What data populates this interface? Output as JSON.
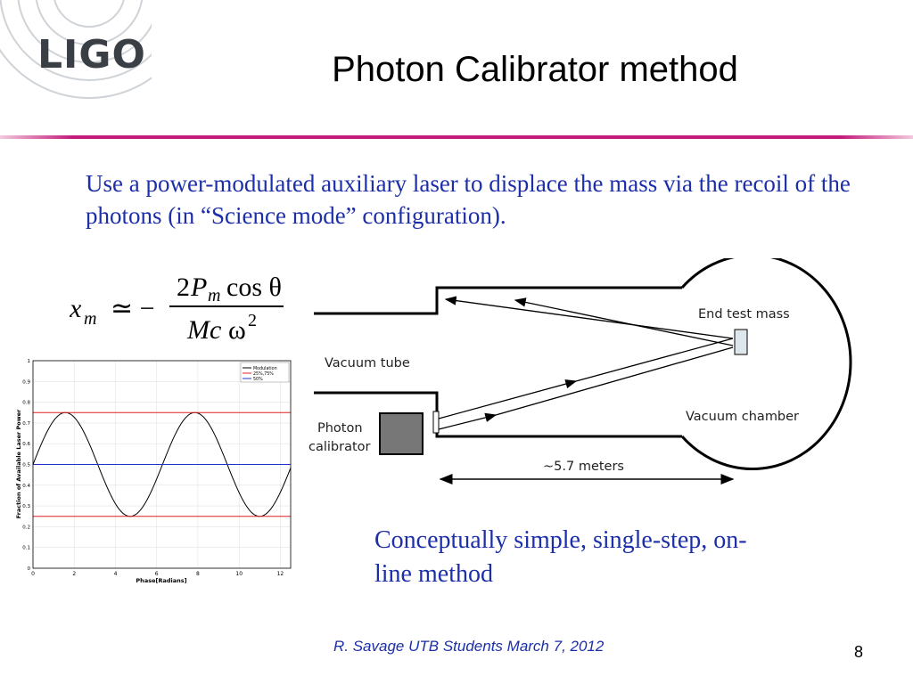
{
  "logo": {
    "text": "LIGO"
  },
  "title": "Photon Calibrator method",
  "intro": "Use a power-modulated auxiliary laser to displace the mass via the recoil of the photons (in “Science mode” configuration).",
  "formula": {
    "lhs": "x",
    "lhs_sub": "m",
    "relation": "≃ −",
    "numerator_coef": "2",
    "numerator_var": "P",
    "numerator_sub": "m",
    "numerator_trig": "cos θ",
    "denominator": "Mc",
    "denominator_omega": "ω",
    "denominator_exp": "2"
  },
  "diagram": {
    "end_test_mass": "End test mass",
    "vacuum_tube": "Vacuum tube",
    "vacuum_chamber": "Vacuum chamber",
    "photon_line1": "Photon",
    "photon_line2": "calibrator",
    "distance": "~5.7 meters"
  },
  "chart_data": {
    "type": "line",
    "xlabel": "Phase[Radians]",
    "ylabel": "Fraction of Available Laser Power",
    "xlim": [
      0,
      12.5
    ],
    "ylim": [
      0,
      1
    ],
    "x_ticks": [
      "0",
      "2",
      "4",
      "6",
      "8",
      "10",
      "12"
    ],
    "y_ticks": [
      "0",
      "0.1",
      "0.2",
      "0.3",
      "0.4",
      "0.5",
      "0.6",
      "0.7",
      "0.8",
      "0.9",
      "1"
    ],
    "grid": true,
    "legend_placement": "top-right",
    "series": [
      {
        "name": "Modulation",
        "color": "#000000",
        "function": "0.5 + 0.25*sin(x)"
      },
      {
        "name": "25%,75%",
        "color": "#e02020",
        "values": [
          0.25,
          0.75
        ]
      },
      {
        "name": "50%",
        "color": "#2030d0",
        "values": [
          0.5
        ]
      }
    ]
  },
  "conclusion": "Conceptually simple, single-step, on-line method",
  "footer": {
    "credit": "R. Savage   UTB Students March 7, 2012",
    "page": "8"
  },
  "colors": {
    "accent_line": "#c21b7c",
    "body_text": "#1d2fa8"
  }
}
